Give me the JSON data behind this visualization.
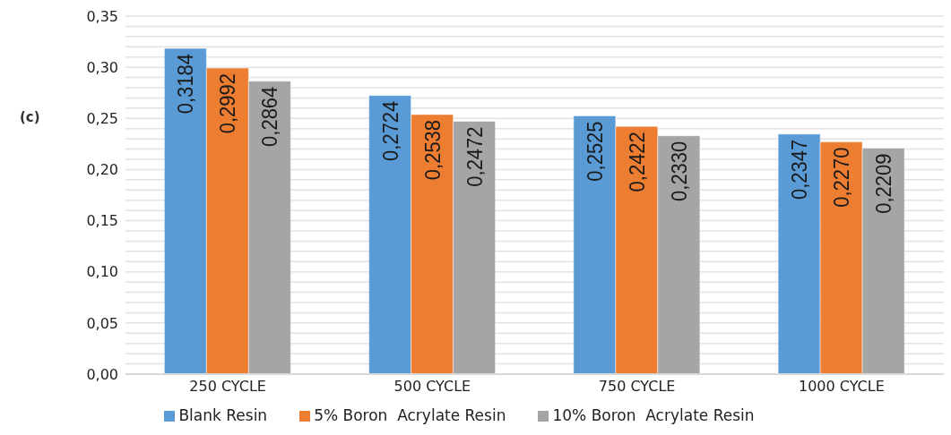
{
  "chart_data": {
    "type": "bar",
    "ylabel": "(c)",
    "categories": [
      "250 CYCLE",
      "500 CYCLE",
      "750 CYCLE",
      "1000 CYCLE"
    ],
    "series": [
      {
        "name": "Blank Resin",
        "color": "#5b9bd5",
        "values": [
          0.3184,
          0.2724,
          0.2525,
          0.2347
        ],
        "value_labels": [
          "0,3184",
          "0,2724",
          "0,2525",
          "0,2347"
        ]
      },
      {
        "name": "5% Boron  Acrylate Resin",
        "color": "#ed7d31",
        "values": [
          0.2992,
          0.2538,
          0.2422,
          0.227
        ],
        "value_labels": [
          "0,2992",
          "0,2538",
          "0,2422",
          "0,2270"
        ]
      },
      {
        "name": "10% Boron  Acrylate Resin",
        "color": "#a5a5a5",
        "values": [
          0.2864,
          0.2472,
          0.233,
          0.2209
        ],
        "value_labels": [
          "0,2864",
          "0,2472",
          "0,2330",
          "0,2209"
        ]
      }
    ],
    "ylim": [
      0,
      0.35
    ],
    "yticks": [
      {
        "value": 0,
        "label": "0,00"
      },
      {
        "value": 0.01,
        "label": null
      },
      {
        "value": 0.02,
        "label": null
      },
      {
        "value": 0.03,
        "label": null
      },
      {
        "value": 0.04,
        "label": null
      },
      {
        "value": 0.05,
        "label": "0,05"
      },
      {
        "value": 0.06,
        "label": null
      },
      {
        "value": 0.07,
        "label": null
      },
      {
        "value": 0.08,
        "label": null
      },
      {
        "value": 0.09,
        "label": null
      },
      {
        "value": 0.1,
        "label": "0,10"
      },
      {
        "value": 0.11,
        "label": null
      },
      {
        "value": 0.12,
        "label": null
      },
      {
        "value": 0.13,
        "label": null
      },
      {
        "value": 0.14,
        "label": null
      },
      {
        "value": 0.15,
        "label": "0,15"
      },
      {
        "value": 0.16,
        "label": null
      },
      {
        "value": 0.17,
        "label": null
      },
      {
        "value": 0.18,
        "label": null
      },
      {
        "value": 0.19,
        "label": null
      },
      {
        "value": 0.2,
        "label": "0,20"
      },
      {
        "value": 0.21,
        "label": null
      },
      {
        "value": 0.22,
        "label": null
      },
      {
        "value": 0.23,
        "label": null
      },
      {
        "value": 0.24,
        "label": null
      },
      {
        "value": 0.25,
        "label": "0,25"
      },
      {
        "value": 0.26,
        "label": null
      },
      {
        "value": 0.27,
        "label": null
      },
      {
        "value": 0.28,
        "label": null
      },
      {
        "value": 0.29,
        "label": null
      },
      {
        "value": 0.3,
        "label": "0,30"
      },
      {
        "value": 0.31,
        "label": null
      },
      {
        "value": 0.32,
        "label": null
      },
      {
        "value": 0.33,
        "label": null
      },
      {
        "value": 0.34,
        "label": null
      },
      {
        "value": 0.35,
        "label": "0,35"
      }
    ],
    "grid": "y",
    "legend": "bottom"
  }
}
